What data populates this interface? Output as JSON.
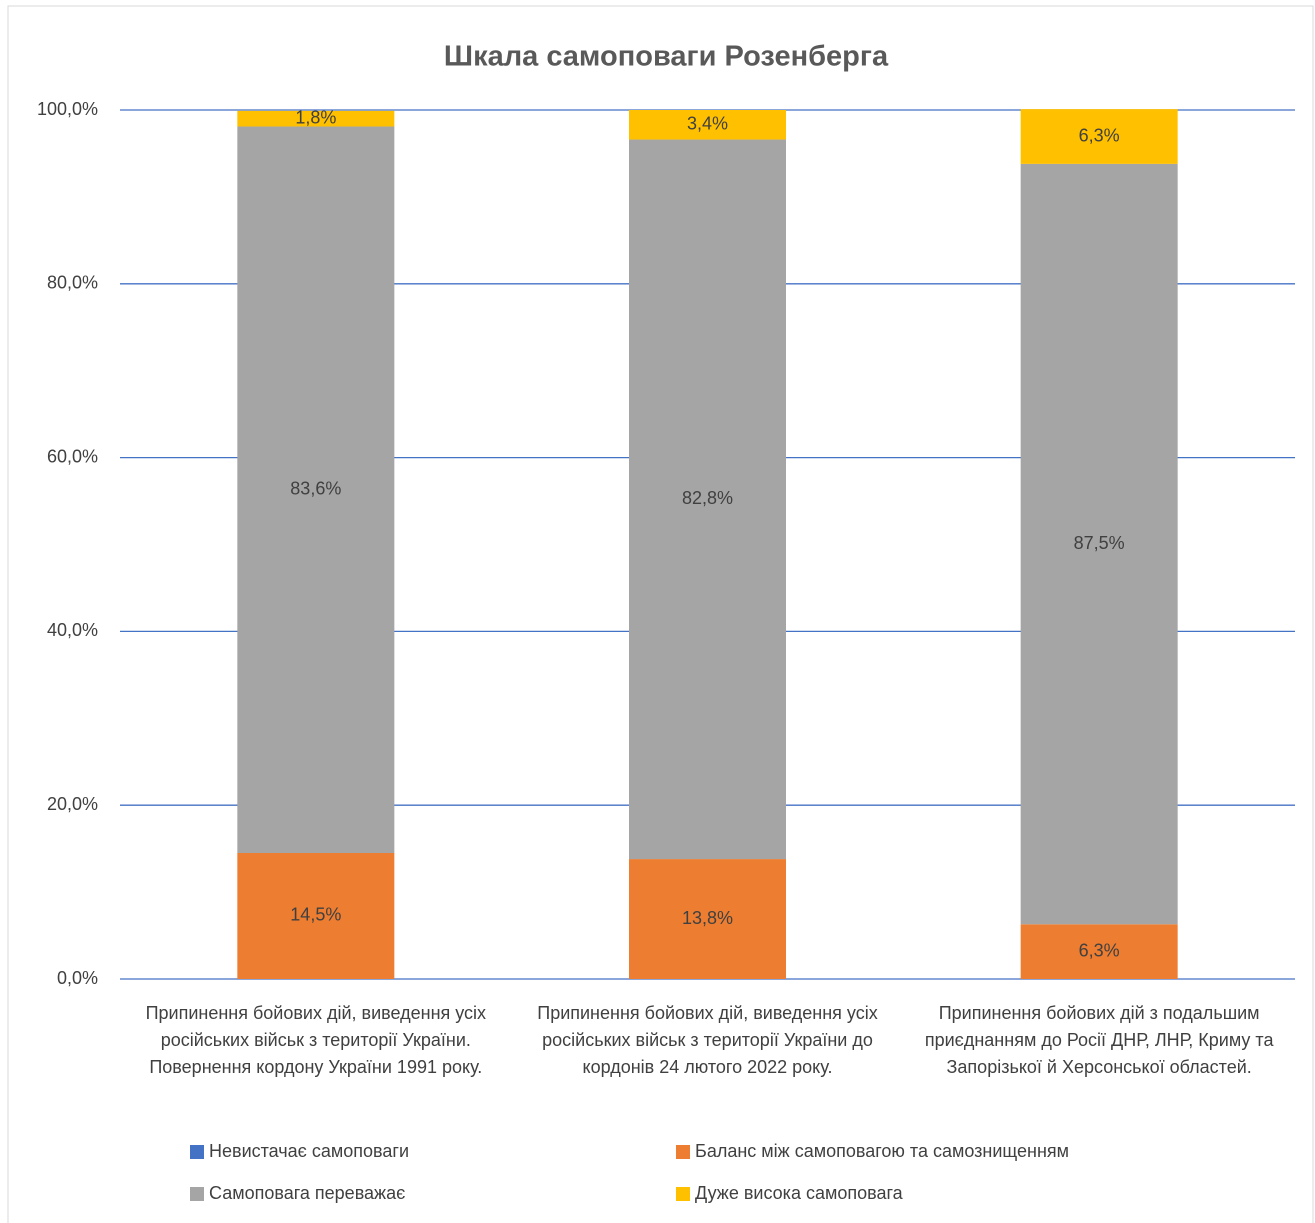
{
  "chart_data": {
    "type": "bar",
    "stacked": true,
    "title": "Шкала самоповаги Розенберга",
    "categories": [
      "Припинення бойових дій, виведення усіх російських військ з території України. Повернення кордону України 1991 року.",
      "Припинення бойових дій, виведення усіх російських військ з території України до кордонів 24 лютого 2022 року.",
      "Припинення бойових дій з подальшим приєднанням до Росії ДНР, ЛНР, Криму та Запорізької й Херсонської областей."
    ],
    "series": [
      {
        "name": "Невистачає самоповаги",
        "color": "#4472c4",
        "values": [
          0,
          0,
          0
        ]
      },
      {
        "name": "Баланс між самоповагою та самознищенням",
        "color": "#ed7d31",
        "values": [
          14.5,
          13.8,
          6.3
        ],
        "value_labels": [
          "14,5%",
          "13,8%",
          "6,3%"
        ]
      },
      {
        "name": "Самоповага переважає",
        "color": "#a5a5a5",
        "values": [
          83.6,
          82.8,
          87.5
        ],
        "value_labels": [
          "83,6%",
          "82,8%",
          "87,5%"
        ]
      },
      {
        "name": "Дуже висока самоповага",
        "color": "#ffc000",
        "values": [
          1.8,
          3.4,
          6.3
        ],
        "value_labels": [
          "1,8%",
          "3,4%",
          "6,3%"
        ]
      }
    ],
    "ylim": [
      0,
      100
    ],
    "yticks": [
      {
        "value": 0,
        "label": "0,0%"
      },
      {
        "value": 20,
        "label": "20,0%"
      },
      {
        "value": 40,
        "label": "40,0%"
      },
      {
        "value": 60,
        "label": "60,0%"
      },
      {
        "value": 80,
        "label": "80,0%"
      },
      {
        "value": 100,
        "label": "100,0%"
      }
    ],
    "grid": true,
    "legend": "bottom"
  }
}
